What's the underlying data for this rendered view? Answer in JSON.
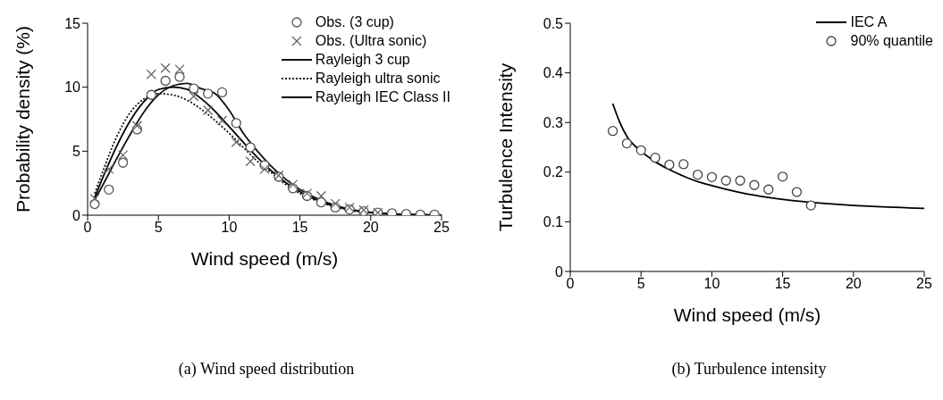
{
  "chart_data": [
    {
      "type": "scatter",
      "title": "(a) Wind speed distribution",
      "xlabel": "Wind speed (m/s)",
      "ylabel": "Probability density (%)",
      "xlim": [
        0,
        25
      ],
      "xticks": [
        0,
        5,
        10,
        15,
        20,
        25
      ],
      "ylim": [
        0,
        15
      ],
      "yticks": [
        0,
        5,
        10,
        15
      ],
      "grid": false,
      "legend": "top right",
      "series": [
        {
          "name": "Obs. (3 cup)",
          "marker": "circle",
          "color": "#555555",
          "x": [
            0.5,
            1.5,
            2.5,
            3.5,
            4.5,
            5.5,
            6.5,
            7.5,
            8.5,
            9.5,
            10.5,
            11.5,
            12.5,
            13.5,
            14.5,
            15.5,
            16.5,
            17.5,
            18.5,
            19.5,
            20.5,
            21.5,
            22.5,
            23.5,
            24.5
          ],
          "values": [
            0.87,
            2.0,
            4.1,
            6.7,
            9.4,
            10.5,
            10.8,
            9.9,
            9.5,
            9.6,
            7.2,
            5.3,
            3.9,
            3.0,
            2.1,
            1.5,
            1.0,
            0.6,
            0.45,
            0.3,
            0.2,
            0.15,
            0.1,
            0.05,
            0.05
          ]
        },
        {
          "name": "Obs. (Ultra sonic)",
          "marker": "cross",
          "color": "#666666",
          "x": [
            0.5,
            1.5,
            2.5,
            3.5,
            4.5,
            5.5,
            6.5,
            7.5,
            8.5,
            9.5,
            10.5,
            11.5,
            12.5,
            13.5,
            14.5,
            15.5,
            16.5,
            17.5,
            18.5,
            19.5,
            20.5
          ],
          "values": [
            1.3,
            3.6,
            4.7,
            7.0,
            11.0,
            11.5,
            11.4,
            9.3,
            8.2,
            7.4,
            5.7,
            4.2,
            3.6,
            3.1,
            2.4,
            1.7,
            1.5,
            0.9,
            0.6,
            0.4,
            0.2
          ]
        },
        {
          "name": "Rayleigh 3 cup",
          "type": "line",
          "line_style": "solid",
          "color": "#111111",
          "x": [
            0.5,
            1,
            2,
            3,
            4,
            5,
            6,
            7,
            8,
            9,
            10,
            11,
            12,
            13,
            14,
            15,
            16,
            17,
            18,
            19,
            20,
            22,
            25
          ],
          "values": [
            1.2,
            2.2,
            4.3,
            6.3,
            8.1,
            9.4,
            10.1,
            10.3,
            9.9,
            9.5,
            8.2,
            6.4,
            5.0,
            3.8,
            2.8,
            2.0,
            1.4,
            0.95,
            0.6,
            0.35,
            0.2,
            0.07,
            0.01
          ]
        },
        {
          "name": "Rayleigh ultra sonic",
          "type": "line",
          "line_style": "dotted",
          "color": "#111111",
          "x": [
            0.5,
            1,
            2,
            3,
            4,
            5,
            6,
            7,
            8,
            9,
            10,
            11,
            12,
            13,
            14,
            15,
            16,
            17,
            18,
            19,
            20,
            22,
            25
          ],
          "values": [
            1.7,
            3.2,
            6.0,
            8.0,
            9.1,
            9.5,
            9.4,
            9.0,
            8.3,
            7.4,
            6.4,
            5.3,
            4.2,
            3.3,
            2.4,
            1.7,
            1.2,
            0.8,
            0.5,
            0.3,
            0.2,
            0.06,
            0.01
          ]
        },
        {
          "name": "Rayleigh IEC Class II",
          "type": "line",
          "line_style": "solid",
          "color": "#000000",
          "x": [
            0.5,
            1,
            2,
            3,
            4,
            5,
            6,
            7,
            8,
            9,
            10,
            11,
            12,
            13,
            14,
            15,
            16,
            17,
            18,
            19,
            20,
            22,
            25
          ],
          "values": [
            1.38,
            2.74,
            5.26,
            7.36,
            8.9,
            9.82,
            10.0,
            9.84,
            9.13,
            8.12,
            6.92,
            5.69,
            4.51,
            3.45,
            2.55,
            1.83,
            1.27,
            0.85,
            0.56,
            0.35,
            0.22,
            0.08,
            0.01
          ]
        }
      ]
    },
    {
      "type": "scatter",
      "title": "(b) Turbulence intensity",
      "xlabel": "Wind speed (m/s)",
      "ylabel": "Turbulence Intensity",
      "xlim": [
        0,
        25
      ],
      "xticks": [
        0,
        5,
        10,
        15,
        20,
        25
      ],
      "ylim": [
        0,
        0.5
      ],
      "yticks": [
        0,
        0.1,
        0.2,
        0.3,
        0.4,
        0.5
      ],
      "grid": false,
      "legend": "top right",
      "series": [
        {
          "name": "IEC A",
          "type": "line",
          "line_style": "solid",
          "color": "#000000",
          "x": [
            3,
            3.5,
            4,
            5,
            6,
            7,
            8,
            9,
            10,
            12,
            14,
            16,
            18,
            20,
            22,
            25
          ],
          "values": [
            0.338,
            0.3,
            0.272,
            0.242,
            0.221,
            0.205,
            0.192,
            0.181,
            0.173,
            0.159,
            0.149,
            0.142,
            0.137,
            0.133,
            0.13,
            0.127
          ]
        },
        {
          "name": "90% quantile",
          "marker": "circle",
          "color": "#444444",
          "x": [
            3,
            4,
            5,
            6,
            7,
            8,
            9,
            10,
            11,
            12,
            13,
            14,
            15,
            16,
            17
          ],
          "values": [
            0.283,
            0.258,
            0.244,
            0.229,
            0.215,
            0.216,
            0.195,
            0.19,
            0.183,
            0.183,
            0.174,
            0.165,
            0.191,
            0.16,
            0.133
          ]
        }
      ]
    }
  ]
}
